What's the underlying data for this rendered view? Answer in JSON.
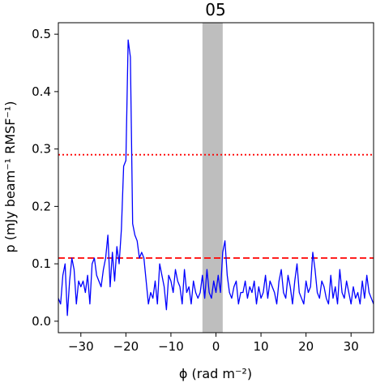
{
  "chart_data": {
    "type": "line",
    "title": "05",
    "xlabel": "ϕ (rad m⁻²)",
    "ylabel": "p (mJy beam⁻¹ RMSF⁻¹)",
    "xlim": [
      -35,
      35
    ],
    "ylim": [
      -0.02,
      0.52
    ],
    "xticks": [
      -30,
      -20,
      -10,
      0,
      10,
      20,
      30
    ],
    "yticks": [
      0.0,
      0.1,
      0.2,
      0.3,
      0.4,
      0.5
    ],
    "grid": false,
    "legend": "none",
    "colors": {
      "series": "#0000ff",
      "dotted_line": "#ff0000",
      "dashed_line": "#ff0000",
      "shaded_band": "#bebebe"
    },
    "shaded_band": {
      "x0": -3,
      "x1": 1.5
    },
    "hlines": [
      {
        "y": 0.29,
        "style": "dotted"
      },
      {
        "y": 0.11,
        "style": "dashed"
      }
    ],
    "series": [
      {
        "x": [
          -35,
          -34.5,
          -34,
          -33.5,
          -33,
          -32.5,
          -32,
          -31.5,
          -31,
          -30.5,
          -30,
          -29.5,
          -29,
          -28.5,
          -28,
          -27.5,
          -27,
          -26.5,
          -26,
          -25.5,
          -25,
          -24.5,
          -24,
          -23.5,
          -23,
          -22.5,
          -22,
          -21.5,
          -21,
          -20.5,
          -20,
          -19.5,
          -19,
          -18.5,
          -18,
          -17.5,
          -17,
          -16.5,
          -16,
          -15.5,
          -15,
          -14.5,
          -14,
          -13.5,
          -13,
          -12.5,
          -12,
          -11.5,
          -11,
          -10.5,
          -10,
          -9.5,
          -9,
          -8.5,
          -8,
          -7.5,
          -7,
          -6.5,
          -6,
          -5.5,
          -5,
          -4.5,
          -4,
          -3.5,
          -3,
          -2.5,
          -2,
          -1.5,
          -1,
          -0.5,
          0,
          0.5,
          1,
          1.5,
          2,
          2.5,
          3,
          3.5,
          4,
          4.5,
          5,
          5.5,
          6,
          6.5,
          7,
          7.5,
          8,
          8.5,
          9,
          9.5,
          10,
          10.5,
          11,
          11.5,
          12,
          12.5,
          13,
          13.5,
          14,
          14.5,
          15,
          15.5,
          16,
          16.5,
          17,
          17.5,
          18,
          18.5,
          19,
          19.5,
          20,
          20.5,
          21,
          21.5,
          22,
          22.5,
          23,
          23.5,
          24,
          24.5,
          25,
          25.5,
          26,
          26.5,
          27,
          27.5,
          28,
          28.5,
          29,
          29.5,
          30,
          30.5,
          31,
          31.5,
          32,
          32.5,
          33,
          33.5,
          34,
          34.5,
          35
        ],
        "values": [
          0.04,
          0.03,
          0.08,
          0.1,
          0.01,
          0.07,
          0.11,
          0.09,
          0.03,
          0.07,
          0.06,
          0.07,
          0.05,
          0.08,
          0.03,
          0.1,
          0.11,
          0.08,
          0.07,
          0.06,
          0.09,
          0.11,
          0.15,
          0.06,
          0.12,
          0.07,
          0.13,
          0.1,
          0.16,
          0.27,
          0.28,
          0.49,
          0.46,
          0.17,
          0.15,
          0.14,
          0.11,
          0.12,
          0.11,
          0.07,
          0.03,
          0.05,
          0.04,
          0.07,
          0.03,
          0.1,
          0.08,
          0.06,
          0.02,
          0.08,
          0.07,
          0.05,
          0.09,
          0.07,
          0.06,
          0.03,
          0.09,
          0.05,
          0.06,
          0.03,
          0.07,
          0.05,
          0.04,
          0.05,
          0.08,
          0.04,
          0.09,
          0.05,
          0.04,
          0.07,
          0.05,
          0.08,
          0.05,
          0.12,
          0.14,
          0.08,
          0.05,
          0.04,
          0.06,
          0.07,
          0.03,
          0.05,
          0.05,
          0.07,
          0.04,
          0.06,
          0.05,
          0.07,
          0.03,
          0.06,
          0.04,
          0.05,
          0.08,
          0.04,
          0.07,
          0.06,
          0.05,
          0.03,
          0.07,
          0.09,
          0.05,
          0.04,
          0.08,
          0.06,
          0.03,
          0.07,
          0.1,
          0.05,
          0.04,
          0.03,
          0.07,
          0.05,
          0.06,
          0.12,
          0.09,
          0.05,
          0.04,
          0.07,
          0.06,
          0.04,
          0.03,
          0.08,
          0.04,
          0.06,
          0.03,
          0.09,
          0.05,
          0.04,
          0.07,
          0.05,
          0.03,
          0.06,
          0.04,
          0.05,
          0.03,
          0.07,
          0.04,
          0.08,
          0.05,
          0.04,
          0.03
        ]
      }
    ]
  }
}
